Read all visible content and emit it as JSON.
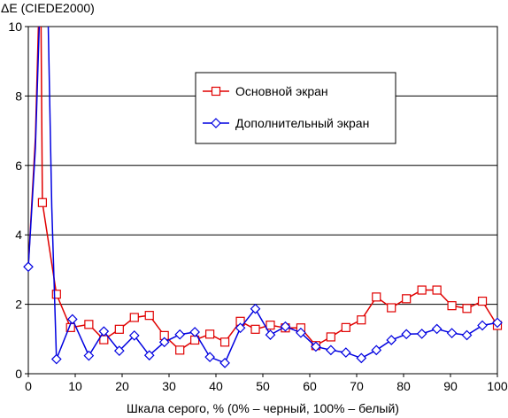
{
  "chart_data": {
    "type": "line",
    "title": "",
    "ylabel": "ΔE (CIEDE2000)",
    "xlabel": "Шкала серого, % (0% – черный, 100% – белый)",
    "xlim": [
      0,
      100
    ],
    "ylim": [
      0,
      10
    ],
    "xticks": [
      "0",
      "10",
      "20",
      "30",
      "40",
      "50",
      "60",
      "70",
      "80",
      "90",
      "100"
    ],
    "yticks": [
      "0",
      "2",
      "4",
      "6",
      "8",
      "10"
    ],
    "grid": "horizontal",
    "legend_position": "upper-right",
    "series": [
      {
        "name": "Основной экран",
        "color": "#e00000",
        "marker": "square",
        "points": [
          [
            3,
            4.93
          ],
          [
            6,
            2.29
          ],
          [
            9,
            1.33
          ],
          [
            12.9,
            1.42
          ],
          [
            16.1,
            0.98
          ],
          [
            19.4,
            1.28
          ],
          [
            22.6,
            1.62
          ],
          [
            25.8,
            1.68
          ],
          [
            29,
            1.1
          ],
          [
            32.3,
            0.68
          ],
          [
            35.5,
            0.97
          ],
          [
            38.7,
            1.14
          ],
          [
            41.9,
            0.91
          ],
          [
            45.2,
            1.51
          ],
          [
            48.4,
            1.28
          ],
          [
            51.6,
            1.4
          ],
          [
            54.8,
            1.32
          ],
          [
            58.1,
            1.32
          ],
          [
            61.3,
            0.81
          ],
          [
            64.5,
            1.06
          ],
          [
            67.7,
            1.33
          ],
          [
            71,
            1.55
          ],
          [
            74.2,
            2.21
          ],
          [
            77.4,
            1.9
          ],
          [
            80.6,
            2.16
          ],
          [
            83.9,
            2.41
          ],
          [
            87.1,
            2.41
          ],
          [
            90.3,
            1.96
          ],
          [
            93.5,
            1.88
          ],
          [
            96.8,
            2.09
          ],
          [
            100,
            1.39
          ]
        ]
      },
      {
        "name": "Дополнительный экран",
        "color": "#0000e0",
        "marker": "diamond",
        "points": [
          [
            0,
            3.08
          ],
          [
            6,
            0.42
          ],
          [
            9.4,
            1.57
          ],
          [
            12.9,
            0.52
          ],
          [
            16.1,
            1.22
          ],
          [
            19.4,
            0.66
          ],
          [
            22.6,
            1.1
          ],
          [
            25.8,
            0.53
          ],
          [
            29,
            0.91
          ],
          [
            32.3,
            1.13
          ],
          [
            35.5,
            1.2
          ],
          [
            38.7,
            0.48
          ],
          [
            41.9,
            0.31
          ],
          [
            45.2,
            1.32
          ],
          [
            48.4,
            1.87
          ],
          [
            51.6,
            1.12
          ],
          [
            54.8,
            1.36
          ],
          [
            58.1,
            1.18
          ],
          [
            61.3,
            0.78
          ],
          [
            64.5,
            0.68
          ],
          [
            67.7,
            0.61
          ],
          [
            71,
            0.45
          ],
          [
            74.2,
            0.68
          ],
          [
            77.4,
            0.97
          ],
          [
            80.6,
            1.14
          ],
          [
            83.9,
            1.15
          ],
          [
            87.1,
            1.29
          ],
          [
            90.3,
            1.17
          ],
          [
            93.5,
            1.11
          ],
          [
            96.8,
            1.39
          ],
          [
            100,
            1.47
          ]
        ]
      }
    ]
  }
}
